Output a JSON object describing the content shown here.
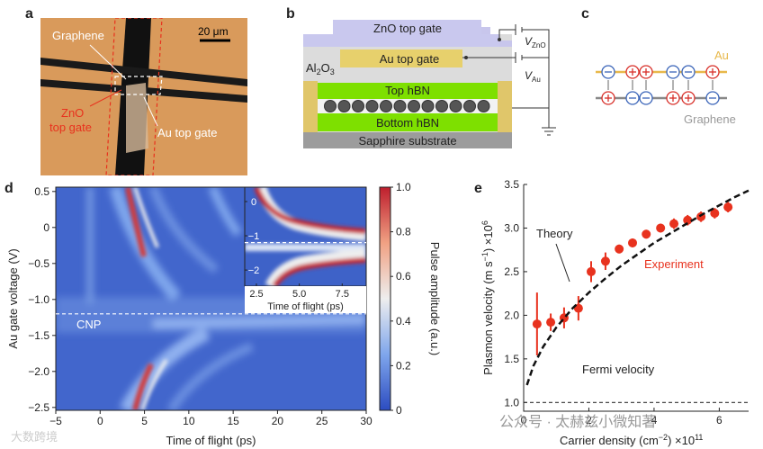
{
  "panels": {
    "a": {
      "label": "a",
      "graphene": "Graphene",
      "scale": "20 μm",
      "zno": [
        "ZnO",
        "top gate"
      ],
      "au": "Au top gate"
    },
    "b": {
      "label": "b",
      "zno": "ZnO top gate",
      "au": "Au top gate",
      "al2o3": [
        "Al",
        "2",
        "O",
        "3"
      ],
      "top_hbn": "Top hBN",
      "bottom_hbn": "Bottom hBN",
      "substrate": "Sapphire substrate",
      "v_zno": [
        "V",
        "ZnO"
      ],
      "v_au": [
        "V",
        "Au"
      ]
    },
    "c": {
      "label": "c",
      "au": "Au",
      "graphene": "Graphene"
    }
  },
  "watermark": [
    "公众号 · 太赫兹小微知著",
    "大数跨境"
  ],
  "chart_data": [
    {
      "type": "heatmap",
      "label": "d",
      "xlabel": "Time of flight (ps)",
      "ylabel": "Au gate voltage (V)",
      "xlim": [
        -5,
        30
      ],
      "ylim": [
        -2.54,
        0.56
      ],
      "xticks": [
        {
          "value": -5,
          "label": "−5"
        },
        0,
        5,
        10,
        15,
        20,
        25,
        30
      ],
      "yticks": [
        0.5,
        0,
        {
          "value": -0.5,
          "label": "−0.5"
        },
        {
          "value": -1,
          "label": "−1.0"
        },
        {
          "value": -1.5,
          "label": "−1.5"
        },
        {
          "value": -2,
          "label": "−2.0"
        },
        {
          "value": -2.5,
          "label": "−2.5"
        }
      ],
      "annotation": "CNP",
      "cnp": -1.2,
      "colormap": [
        "#2c4cc0",
        "#7fa6ec",
        "#eeeeee",
        "#f0a183",
        "#be1e2d"
      ],
      "colorbar": {
        "label": "Pulse amplitude (a.u.)",
        "lim": [
          0,
          1
        ],
        "ticks": [
          0,
          0.2,
          0.4,
          0.6,
          0.8,
          {
            "value": 1,
            "label": "1.0"
          }
        ]
      },
      "inset": {
        "xlabel": "Time of flight (ps)",
        "xlim": [
          1.82,
          8.9
        ],
        "ylim": [
          -2.47,
          0.42
        ],
        "xticks": [
          2.5,
          {
            "value": 5,
            "label": "5.0"
          },
          7.5
        ],
        "yticks": [
          0,
          {
            "value": -1,
            "label": "−1"
          },
          {
            "value": -2,
            "label": "−2"
          }
        ],
        "cnp": -1.2
      }
    },
    {
      "type": "scatter",
      "label": "e",
      "xlabel": [
        "Carrier density (cm",
        "−2",
        ") ×10",
        "11"
      ],
      "ylabel": [
        "Plasmon velocity (m s",
        "−1",
        ") ×10",
        "6"
      ],
      "xlim": [
        0,
        6.9
      ],
      "ylim": [
        0.9,
        3.5
      ],
      "xticks": [
        0,
        2,
        4,
        6
      ],
      "yticks": [
        {
          "value": 1,
          "label": "1.0"
        },
        1.5,
        {
          "value": 2,
          "label": "2.0"
        },
        2.5,
        {
          "value": 3,
          "label": "3.0"
        },
        3.5
      ],
      "series": [
        {
          "name": "Experiment",
          "color": "#e8321e",
          "x": [
            0.41,
            0.83,
            1.24,
            1.68,
            2.07,
            2.51,
            2.93,
            3.34,
            3.76,
            4.2,
            4.61,
            5.03,
            5.44,
            5.86,
            6.27
          ],
          "values": [
            1.9,
            1.92,
            1.97,
            2.08,
            2.5,
            2.62,
            2.76,
            2.83,
            2.93,
            3.0,
            3.05,
            3.09,
            3.13,
            3.17,
            3.24
          ],
          "errors": [
            0.36,
            0.1,
            0.12,
            0.14,
            0.12,
            0.1,
            0.05,
            0.05,
            0.05,
            0.05,
            0.06,
            0.06,
            0.06,
            0.06,
            0.06
          ]
        },
        {
          "name": "Theory",
          "color": "#111111",
          "x": [
            0.1,
            0.3,
            0.6,
            1,
            1.5,
            2,
            2.5,
            3,
            3.5,
            4,
            4.5,
            5,
            5.5,
            6,
            6.5,
            6.9
          ],
          "values": [
            1.2,
            1.42,
            1.64,
            1.86,
            2.08,
            2.26,
            2.42,
            2.57,
            2.7,
            2.83,
            2.94,
            3.05,
            3.16,
            3.26,
            3.36,
            3.43
          ]
        },
        {
          "name": "Fermi velocity",
          "color": "#333333",
          "x": [
            0,
            6.9
          ],
          "values": [
            1.0,
            1.0
          ]
        }
      ]
    }
  ]
}
